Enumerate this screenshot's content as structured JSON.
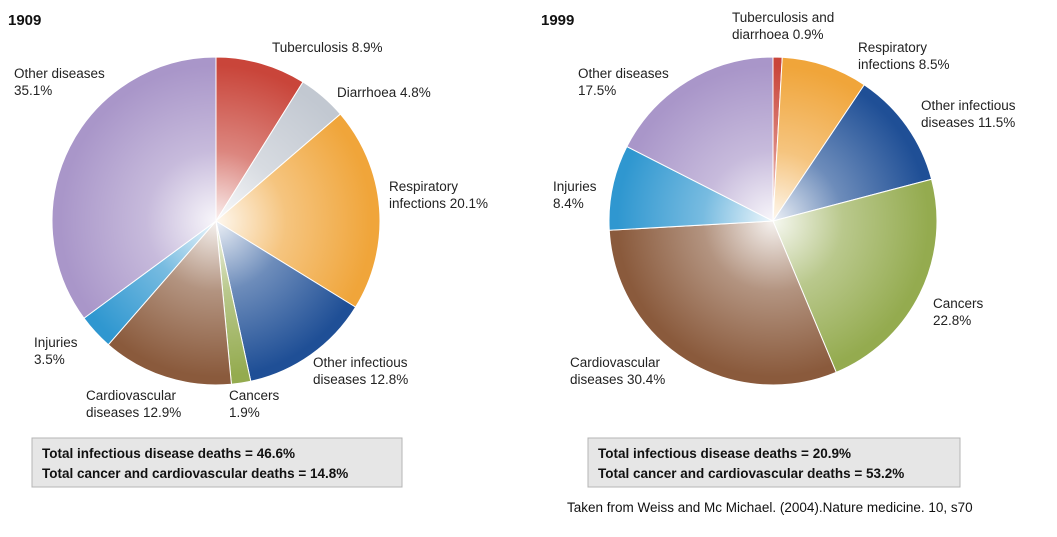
{
  "chart_data": [
    {
      "type": "pie",
      "title": "1909",
      "slices": [
        {
          "name": "Tuberculosis",
          "value": 8.9,
          "label_lines": [
            "Tuberculosis 8.9%"
          ],
          "color": "#c9453a"
        },
        {
          "name": "Diarrhoea",
          "value": 4.8,
          "label_lines": [
            "Diarrhoea 4.8%"
          ],
          "color": "#c2c8d1"
        },
        {
          "name": "Respiratory infections",
          "value": 20.1,
          "label_lines": [
            "Respiratory",
            "infections 20.1%"
          ],
          "color": "#f0a53a"
        },
        {
          "name": "Other infectious diseases",
          "value": 12.8,
          "label_lines": [
            "Other infectious",
            "diseases 12.8%"
          ],
          "color": "#1f4f96"
        },
        {
          "name": "Cancers",
          "value": 1.9,
          "label_lines": [
            "Cancers",
            "1.9%"
          ],
          "color": "#94ab4f"
        },
        {
          "name": "Cardiovascular diseases",
          "value": 12.9,
          "label_lines": [
            "Cardiovascular",
            "diseases 12.9%"
          ],
          "color": "#8a5a3c"
        },
        {
          "name": "Injuries",
          "value": 3.5,
          "label_lines": [
            "Injuries",
            "3.5%"
          ],
          "color": "#2f97d0"
        },
        {
          "name": "Other diseases",
          "value": 35.1,
          "label_lines": [
            "Other diseases",
            "35.1%"
          ],
          "color": "#a996c9"
        }
      ],
      "summary": [
        "Total infectious disease deaths = 46.6%",
        "Total cancer and cardiovascular deaths = 14.8%"
      ]
    },
    {
      "type": "pie",
      "title": "1999",
      "slices": [
        {
          "name": "Tuberculosis and diarrhoea",
          "value": 0.9,
          "label_lines": [
            "Tuberculosis and",
            "diarrhoea 0.9%"
          ],
          "color": "#c9453a"
        },
        {
          "name": "Respiratory infections",
          "value": 8.5,
          "label_lines": [
            "Respiratory",
            "infections 8.5%"
          ],
          "color": "#f0a53a"
        },
        {
          "name": "Other infectious diseases",
          "value": 11.5,
          "label_lines": [
            "Other infectious",
            "diseases 11.5%"
          ],
          "color": "#1f4f96"
        },
        {
          "name": "Cancers",
          "value": 22.8,
          "label_lines": [
            "Cancers",
            "22.8%"
          ],
          "color": "#94ab4f"
        },
        {
          "name": "Cardiovascular diseases",
          "value": 30.4,
          "label_lines": [
            "Cardiovascular",
            "diseases 30.4%"
          ],
          "color": "#8a5a3c"
        },
        {
          "name": "Injuries",
          "value": 8.4,
          "label_lines": [
            "Injuries",
            "8.4%"
          ],
          "color": "#2f97d0"
        },
        {
          "name": "Other diseases",
          "value": 17.5,
          "label_lines": [
            "Other diseases",
            "17.5%"
          ],
          "color": "#a996c9"
        }
      ],
      "summary": [
        "Total infectious disease deaths = 20.9%",
        "Total cancer and cardiovascular deaths = 53.2%"
      ]
    }
  ],
  "source": "Taken from Weiss and Mc Michael. (2004).Nature medicine. 10, s70"
}
